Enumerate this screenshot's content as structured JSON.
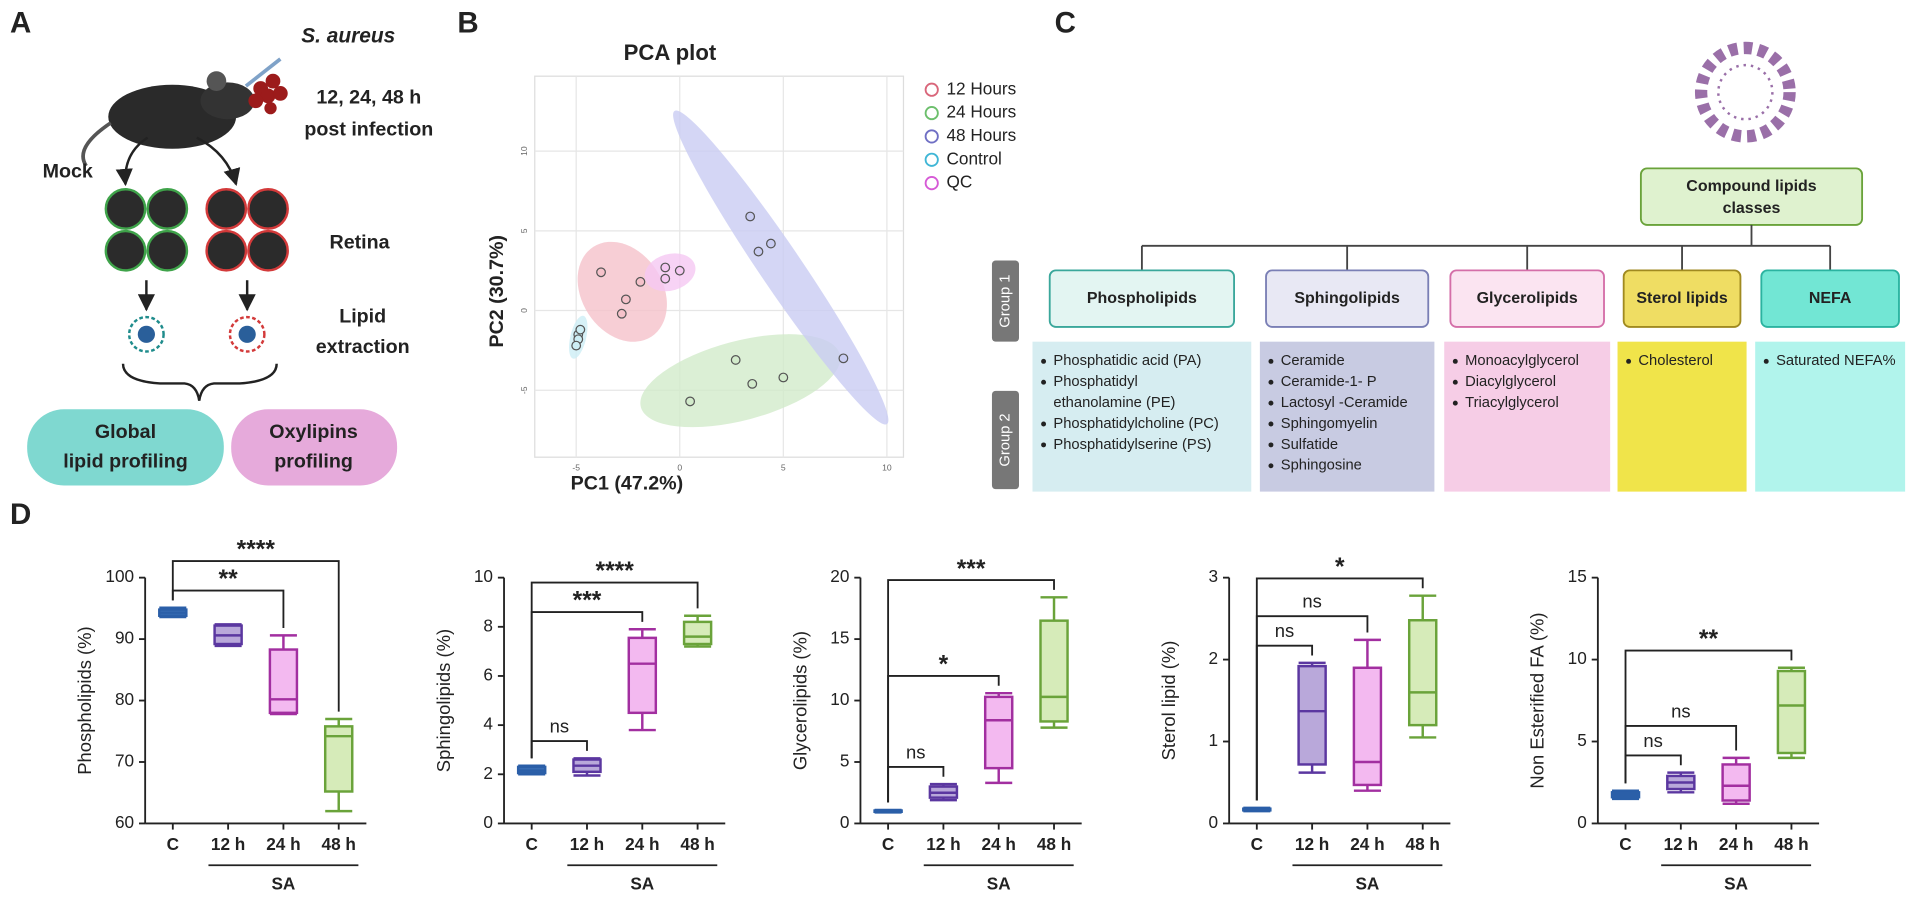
{
  "panel_labels": [
    "A",
    "B",
    "C",
    "D"
  ],
  "schematic": {
    "pathogen": "S. aureus",
    "times": "12, 24, 48 h",
    "post": "post infection",
    "mock": "Mock",
    "retina": "Retina",
    "extraction": [
      "Lipid",
      "extraction"
    ],
    "profiles": [
      [
        "Global",
        "lipid profiling"
      ],
      [
        "Oxylipins",
        "profiling"
      ]
    ]
  },
  "diagram": {
    "root": [
      "Compound lipids",
      "classes"
    ],
    "groups": [
      "Group 1",
      "Group 2"
    ],
    "classes": [
      {
        "name": "Phospholipids",
        "border": "#3aa79b",
        "head_fill": "#e3f5f2",
        "fill": "#d6edf1",
        "items": [
          [
            "Phosphatidic acid (PA)"
          ],
          [
            "Phosphatidyl",
            "ethanolamine (PE)"
          ],
          [
            "Phosphatidylcholine (PC)"
          ],
          [
            "Phosphatidylserine (PS)"
          ]
        ]
      },
      {
        "name": "Sphingolipids",
        "border": "#7a7fb5",
        "head_fill": "#e8e8f4",
        "fill": "#c8cbe2",
        "items": [
          [
            "Ceramide"
          ],
          [
            "Ceramide-1- P"
          ],
          [
            "Lactosyl -Ceramide"
          ],
          [
            "Sphingomyelin"
          ],
          [
            "Sulfatide"
          ],
          [
            "Sphingosine"
          ]
        ]
      },
      {
        "name": "Glycerolipids",
        "border": "#d46ea8",
        "head_fill": "#fbe4f1",
        "fill": "#f6cde6",
        "items": [
          [
            "Monoacylglycerol"
          ],
          [
            "Diacylglycerol"
          ],
          [
            "Triacylglycerol"
          ]
        ]
      },
      {
        "name": "Sterol lipids",
        "border": "#a08a20",
        "head_fill": "#efdd63",
        "fill": "#f0e44a",
        "items": [
          [
            "Cholesterol"
          ]
        ]
      },
      {
        "name": "NEFA",
        "border": "#2bb3a0",
        "head_fill": "#72e6d4",
        "fill": "#b1f4ec",
        "items": [
          [
            "Saturated NEFA%"
          ]
        ]
      }
    ]
  },
  "chart_data": [
    {
      "type": "scatter",
      "title": "PCA plot",
      "x_label": "PC1 (47.2%)",
      "y_label": "PC2 (30.7%)",
      "xlim": [
        -7,
        10.8
      ],
      "ylim": [
        -9.2,
        14.7
      ],
      "xticks": [
        -5,
        0,
        5,
        10
      ],
      "yticks": [
        -5,
        0,
        5,
        10
      ],
      "grid": true,
      "series": [
        {
          "name": "12 Hours",
          "color": "#d9667a",
          "fill": "#f5c2ca",
          "x": [
            -3.8,
            -2.6,
            -1.9,
            -2.8
          ],
          "y": [
            2.4,
            0.7,
            1.8,
            -0.2
          ]
        },
        {
          "name": "24 Hours",
          "color": "#6cbf6c",
          "fill": "#d2ebcb",
          "x": [
            2.7,
            3.5,
            5.0,
            0.5
          ],
          "y": [
            -3.1,
            -4.6,
            -4.2,
            -5.7
          ]
        },
        {
          "name": "48 Hours",
          "color": "#6f6fc4",
          "fill": "#c9ccf2",
          "x": [
            3.4,
            3.8,
            4.4,
            7.9
          ],
          "y": [
            5.9,
            3.7,
            4.2,
            -3.0
          ]
        },
        {
          "name": "Control",
          "color": "#3fb6d6",
          "fill": "#cdeef5",
          "x": [
            -4.9,
            -4.9,
            -5.0,
            -4.8
          ],
          "y": [
            -1.5,
            -1.8,
            -2.2,
            -1.2
          ]
        },
        {
          "name": "QC",
          "color": "#d65ad6",
          "fill": "#f5c8f2",
          "x": [
            -0.7,
            0.0,
            -0.7
          ],
          "y": [
            2.7,
            2.5,
            2.0
          ]
        }
      ]
    },
    {
      "type": "box",
      "y_label": "Phospholipids (%)",
      "categories": [
        "C",
        "12 h",
        "24 h",
        "48 h"
      ],
      "group_label": "SA",
      "colors": [
        "#2b5fa8",
        "#5b37a0",
        "#a22fa0",
        "#6aa33a"
      ],
      "fills": [
        "#3b6fb6",
        "#b9a8da",
        "#f3b9f0",
        "#d6ebb9"
      ],
      "ylim": [
        60,
        100
      ],
      "yticks": [
        60,
        70,
        80,
        90,
        100
      ],
      "boxes": [
        {
          "min": 93.6,
          "q1": 93.8,
          "median": 94.3,
          "q3": 94.8,
          "max": 95.1
        },
        {
          "min": 88.9,
          "q1": 89.2,
          "median": 90.6,
          "q3": 92.2,
          "max": 92.4
        },
        {
          "min": 77.8,
          "q1": 78.0,
          "median": 80.2,
          "q3": 88.3,
          "max": 90.6
        },
        {
          "min": 62.0,
          "q1": 65.2,
          "median": 74.2,
          "q3": 75.8,
          "max": 77.0
        }
      ],
      "significance": [
        null,
        null,
        "**",
        "****"
      ]
    },
    {
      "type": "box",
      "y_label": "Sphingolipids (%)",
      "categories": [
        "C",
        "12 h",
        "24 h",
        "48 h"
      ],
      "group_label": "SA",
      "colors": [
        "#2b5fa8",
        "#5b37a0",
        "#a22fa0",
        "#6aa33a"
      ],
      "fills": [
        "#3b6fb6",
        "#b9a8da",
        "#f3b9f0",
        "#d6ebb9"
      ],
      "ylim": [
        0,
        10
      ],
      "yticks": [
        0,
        2,
        4,
        6,
        8,
        10
      ],
      "boxes": [
        {
          "min": 2.0,
          "q1": 2.05,
          "median": 2.15,
          "q3": 2.3,
          "max": 2.35
        },
        {
          "min": 1.95,
          "q1": 2.1,
          "median": 2.35,
          "q3": 2.6,
          "max": 2.65
        },
        {
          "min": 3.8,
          "q1": 4.5,
          "median": 6.5,
          "q3": 7.55,
          "max": 7.9
        },
        {
          "min": 7.2,
          "q1": 7.3,
          "median": 7.6,
          "q3": 8.2,
          "max": 8.45
        }
      ],
      "significance": [
        null,
        "ns",
        "***",
        "****"
      ]
    },
    {
      "type": "box",
      "y_label": "Glycerolipids (%)",
      "categories": [
        "C",
        "12 h",
        "24 h",
        "48 h"
      ],
      "group_label": "SA",
      "colors": [
        "#2b5fa8",
        "#5b37a0",
        "#a22fa0",
        "#6aa33a"
      ],
      "fills": [
        "#3b6fb6",
        "#b9a8da",
        "#f3b9f0",
        "#d6ebb9"
      ],
      "ylim": [
        0,
        20
      ],
      "yticks": [
        0,
        5,
        10,
        15,
        20
      ],
      "boxes": [
        {
          "min": 0.9,
          "q1": 0.95,
          "median": 1.0,
          "q3": 1.05,
          "max": 1.1
        },
        {
          "min": 1.9,
          "q1": 2.1,
          "median": 2.5,
          "q3": 3.0,
          "max": 3.2
        },
        {
          "min": 3.3,
          "q1": 4.5,
          "median": 8.4,
          "q3": 10.3,
          "max": 10.6
        },
        {
          "min": 7.8,
          "q1": 8.3,
          "median": 10.3,
          "q3": 16.5,
          "max": 18.4
        }
      ],
      "significance": [
        null,
        "ns",
        "*",
        "***"
      ]
    },
    {
      "type": "box",
      "y_label": "Sterol lipid (%)",
      "categories": [
        "C",
        "12 h",
        "24 h",
        "48 h"
      ],
      "group_label": "SA",
      "colors": [
        "#2b5fa8",
        "#5b37a0",
        "#a22fa0",
        "#6aa33a"
      ],
      "fills": [
        "#3b6fb6",
        "#b9a8da",
        "#f3b9f0",
        "#d6ebb9"
      ],
      "ylim": [
        0,
        3
      ],
      "yticks": [
        0,
        1,
        2,
        3
      ],
      "boxes": [
        {
          "min": 0.15,
          "q1": 0.16,
          "median": 0.17,
          "q3": 0.18,
          "max": 0.19
        },
        {
          "min": 0.62,
          "q1": 0.72,
          "median": 1.37,
          "q3": 1.92,
          "max": 1.96
        },
        {
          "min": 0.4,
          "q1": 0.47,
          "median": 0.75,
          "q3": 1.9,
          "max": 2.24
        },
        {
          "min": 1.05,
          "q1": 1.2,
          "median": 1.6,
          "q3": 2.48,
          "max": 2.78
        }
      ],
      "significance": [
        null,
        "ns",
        "ns",
        "*"
      ]
    },
    {
      "type": "box",
      "y_label": "Non Esterified FA (%)",
      "categories": [
        "C",
        "12 h",
        "24 h",
        "48 h"
      ],
      "group_label": "SA",
      "colors": [
        "#2b5fa8",
        "#5b37a0",
        "#a22fa0",
        "#6aa33a"
      ],
      "fills": [
        "#3b6fb6",
        "#b9a8da",
        "#f3b9f0",
        "#d6ebb9"
      ],
      "ylim": [
        0,
        15
      ],
      "yticks": [
        0,
        5,
        10,
        15
      ],
      "boxes": [
        {
          "min": 1.5,
          "q1": 1.6,
          "median": 1.75,
          "q3": 1.9,
          "max": 2.0
        },
        {
          "min": 1.9,
          "q1": 2.1,
          "median": 2.5,
          "q3": 2.9,
          "max": 3.1
        },
        {
          "min": 1.2,
          "q1": 1.4,
          "median": 2.3,
          "q3": 3.6,
          "max": 4.0
        },
        {
          "min": 4.0,
          "q1": 4.3,
          "median": 7.2,
          "q3": 9.3,
          "max": 9.5
        }
      ],
      "significance": [
        null,
        "ns",
        "ns",
        "**"
      ]
    }
  ]
}
